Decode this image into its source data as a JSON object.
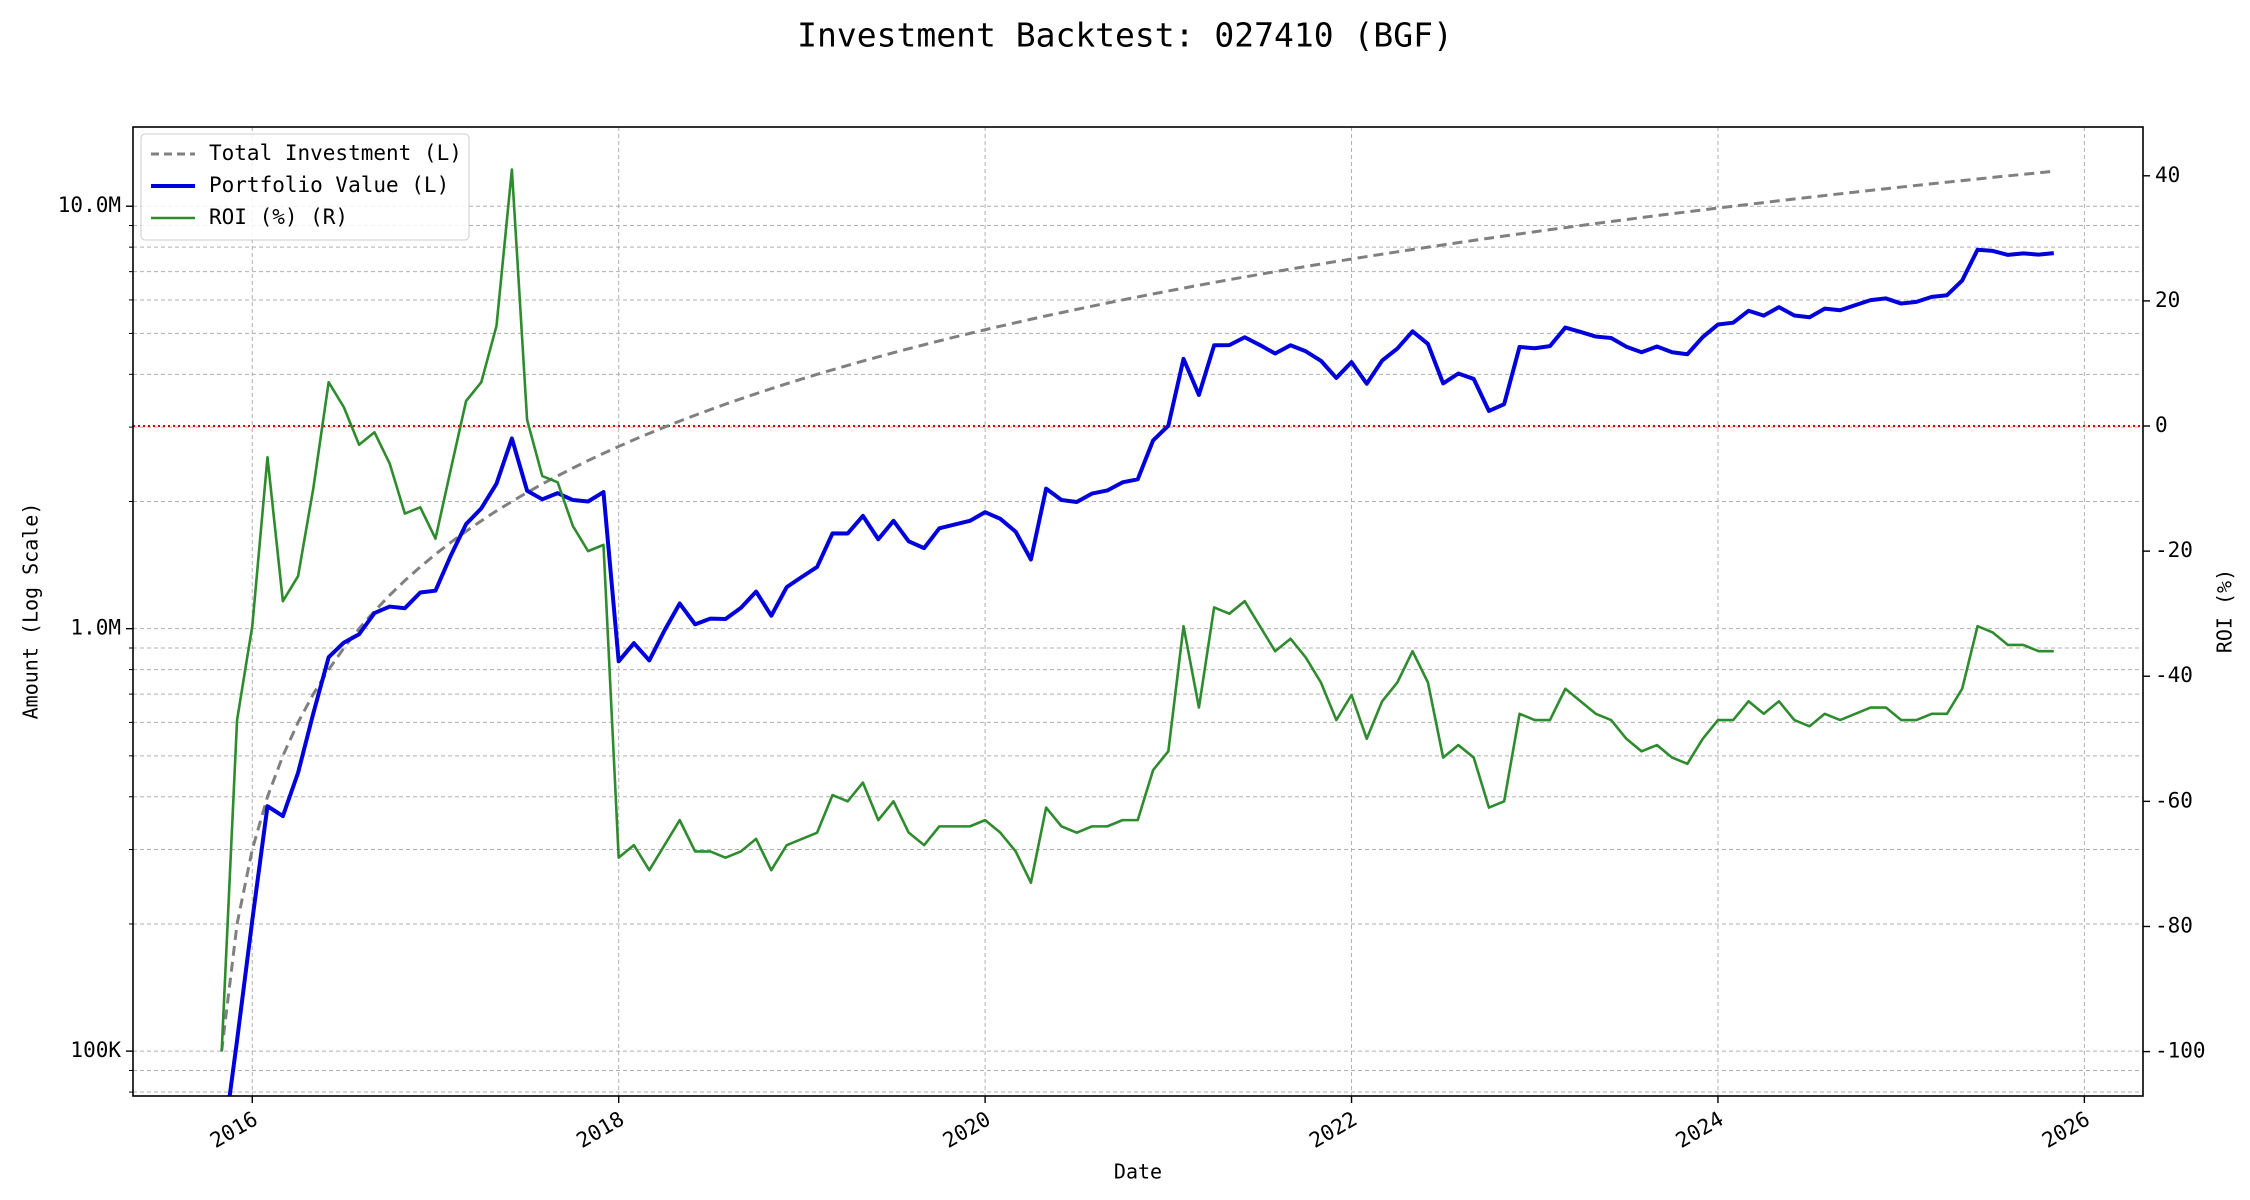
{
  "chart_data": {
    "type": "line",
    "title": "Investment Backtest: 027410 (BGF)",
    "xlabel": "Date",
    "ylabel": "Amount (Log Scale)",
    "y2label": "ROI (%)",
    "log_y": true,
    "grid": true,
    "legend": "upper left",
    "ylabel_color": "#0000cc",
    "y2label_color": "#228b22",
    "reference_line": {
      "axis": "y2",
      "value": 0,
      "color": "#dd0000"
    },
    "xlim": [
      2015.349,
      2026.32
    ],
    "xticks": [
      2016,
      2018,
      2020,
      2022,
      2024,
      2026
    ],
    "ylim": [
      78300,
      15400000
    ],
    "yticks": [
      {
        "value": 100000,
        "label": "100K"
      },
      {
        "value": 1000000,
        "label": "1.0M"
      },
      {
        "value": 10000000,
        "label": "10.0M"
      }
    ],
    "y2lim": [
      -107.1,
      47.8
    ],
    "y2ticks": [
      -100,
      -80,
      -60,
      -40,
      -20,
      0,
      20,
      40
    ],
    "x": [
      2015.833,
      2015.917,
      2016.0,
      2016.083,
      2016.167,
      2016.25,
      2016.333,
      2016.417,
      2016.5,
      2016.583,
      2016.667,
      2016.75,
      2016.833,
      2016.917,
      2017.0,
      2017.083,
      2017.167,
      2017.25,
      2017.333,
      2017.417,
      2017.5,
      2017.583,
      2017.667,
      2017.75,
      2017.833,
      2017.917,
      2018.0,
      2018.083,
      2018.167,
      2018.25,
      2018.333,
      2018.417,
      2018.5,
      2018.583,
      2018.667,
      2018.75,
      2018.833,
      2018.917,
      2019.0,
      2019.083,
      2019.167,
      2019.25,
      2019.333,
      2019.417,
      2019.5,
      2019.583,
      2019.667,
      2019.75,
      2019.833,
      2019.917,
      2020.0,
      2020.083,
      2020.167,
      2020.25,
      2020.333,
      2020.417,
      2020.5,
      2020.583,
      2020.667,
      2020.75,
      2020.833,
      2020.917,
      2021.0,
      2021.083,
      2021.167,
      2021.25,
      2021.333,
      2021.417,
      2021.5,
      2021.583,
      2021.667,
      2021.75,
      2021.833,
      2021.917,
      2022.0,
      2022.083,
      2022.167,
      2022.25,
      2022.333,
      2022.417,
      2022.5,
      2022.583,
      2022.667,
      2022.75,
      2022.833,
      2022.917,
      2023.0,
      2023.083,
      2023.167,
      2023.25,
      2023.333,
      2023.417,
      2023.5,
      2023.583,
      2023.667,
      2023.75,
      2023.833,
      2023.917,
      2024.0,
      2024.083,
      2024.167,
      2024.25,
      2024.333,
      2024.417,
      2024.5,
      2024.583,
      2024.667,
      2024.75,
      2024.833,
      2024.917,
      2025.0,
      2025.083,
      2025.167,
      2025.25,
      2025.333,
      2025.417,
      2025.5,
      2025.583,
      2025.667,
      2025.75,
      2025.833
    ],
    "series": [
      {
        "name": "Total Investment (L)",
        "color": "#808080",
        "style": "dashed",
        "width": 3,
        "values": [
          100000,
          200000,
          300000,
          400000,
          500000,
          600000,
          700000,
          800000,
          900000,
          1000000,
          1100000,
          1200000,
          1300000,
          1400000,
          1500000,
          1600000,
          1700000,
          1800000,
          1900000,
          2000000,
          2100000,
          2200000,
          2300000,
          2400000,
          2500000,
          2600000,
          2700000,
          2800000,
          2900000,
          3000000,
          3100000,
          3200000,
          3300000,
          3400000,
          3500000,
          3600000,
          3700000,
          3800000,
          3900000,
          4000000,
          4100000,
          4200000,
          4300000,
          4400000,
          4500000,
          4600000,
          4700000,
          4800000,
          4900000,
          5000000,
          5100000,
          5200000,
          5300000,
          5400000,
          5500000,
          5600000,
          5700000,
          5800000,
          5900000,
          6000000,
          6100000,
          6200000,
          6300000,
          6400000,
          6500000,
          6600000,
          6700000,
          6800000,
          6900000,
          7000000,
          7100000,
          7200000,
          7300000,
          7400000,
          7500000,
          7600000,
          7700000,
          7800000,
          7900000,
          8000000,
          8100000,
          8200000,
          8300000,
          8400000,
          8500000,
          8600000,
          8700000,
          8800000,
          8900000,
          9000000,
          9100000,
          9200000,
          9300000,
          9400000,
          9500000,
          9600000,
          9700000,
          9800000,
          9900000,
          10000000,
          10100000,
          10200000,
          10300000,
          10400000,
          10500000,
          10600000,
          10700000,
          10800000,
          10900000,
          11000000,
          11100000,
          11200000,
          11300000,
          11400000,
          11500000,
          11600000,
          11700000,
          11800000,
          11900000,
          12000000,
          12100000
        ]
      },
      {
        "name": "Portfolio Value (L)",
        "color": "#0000dd",
        "style": "solid",
        "width": 4,
        "values": [
          0,
          106000,
          204000,
          380000,
          360000,
          456000,
          630000,
          856000,
          927000,
          970000,
          1089000,
          1128000,
          1118000,
          1218000,
          1230000,
          1488000,
          1768000,
          1926000,
          2204000,
          2820000,
          2121000,
          2024000,
          2093000,
          2016000,
          2000000,
          2106000,
          837000,
          924000,
          841000,
          990000,
          1147000,
          1024000,
          1056000,
          1054000,
          1120000,
          1224000,
          1073000,
          1254000,
          1326000,
          1400000,
          1681000,
          1680000,
          1849000,
          1628000,
          1800000,
          1610000,
          1551000,
          1728000,
          1764000,
          1800000,
          1887000,
          1820000,
          1696000,
          1458000,
          2145000,
          2016000,
          1995000,
          2088000,
          2124000,
          2220000,
          2257000,
          2790000,
          3024000,
          4352000,
          3575000,
          4686000,
          4690000,
          4896000,
          4692000,
          4480000,
          4686000,
          4536000,
          4307000,
          3922000,
          4275000,
          3800000,
          4312000,
          4602000,
          5056000,
          4720000,
          3807000,
          4018000,
          3901000,
          3276000,
          3400000,
          4644000,
          4611000,
          4664000,
          5162000,
          5040000,
          4914000,
          4876000,
          4650000,
          4512000,
          4655000,
          4512000,
          4462000,
          4900000,
          5247000,
          5300000,
          5656000,
          5508000,
          5768000,
          5512000,
          5460000,
          5724000,
          5671000,
          5832000,
          5995000,
          6050000,
          5883000,
          5936000,
          6102000,
          6156000,
          6670000,
          7888000,
          7839000,
          7670000,
          7735000,
          7680000,
          7744000
        ]
      },
      {
        "name": "ROI (%) (R)",
        "color": "#2e8b2e",
        "style": "solid",
        "width": 2.6,
        "axis": "y2",
        "values": [
          -100,
          -47,
          -32,
          -5,
          -28,
          -24,
          -10,
          7,
          3,
          -3,
          -1,
          -6,
          -14,
          -13,
          -18,
          -7,
          4,
          7,
          16,
          41,
          1,
          -8,
          -9,
          -16,
          -20,
          -19,
          -69,
          -67,
          -71,
          -67,
          -63,
          -68,
          -68,
          -69,
          -68,
          -66,
          -71,
          -67,
          -66,
          -65,
          -59,
          -60,
          -57,
          -63,
          -60,
          -65,
          -67,
          -64,
          -64,
          -64,
          -63,
          -65,
          -68,
          -73,
          -61,
          -64,
          -65,
          -64,
          -64,
          -63,
          -63,
          -55,
          -52,
          -32,
          -45,
          -29,
          -30,
          -28,
          -32,
          -36,
          -34,
          -37,
          -41,
          -47,
          -43,
          -50,
          -44,
          -41,
          -36,
          -41,
          -53,
          -51,
          -53,
          -61,
          -60,
          -46,
          -47,
          -47,
          -42,
          -44,
          -46,
          -47,
          -50,
          -52,
          -51,
          -53,
          -54,
          -50,
          -47,
          -47,
          -44,
          -46,
          -44,
          -47,
          -48,
          -46,
          -47,
          -46,
          -45,
          -45,
          -47,
          -47,
          -46,
          -46,
          -42,
          -32,
          -33,
          -35,
          -35,
          -36,
          -36
        ]
      }
    ]
  }
}
